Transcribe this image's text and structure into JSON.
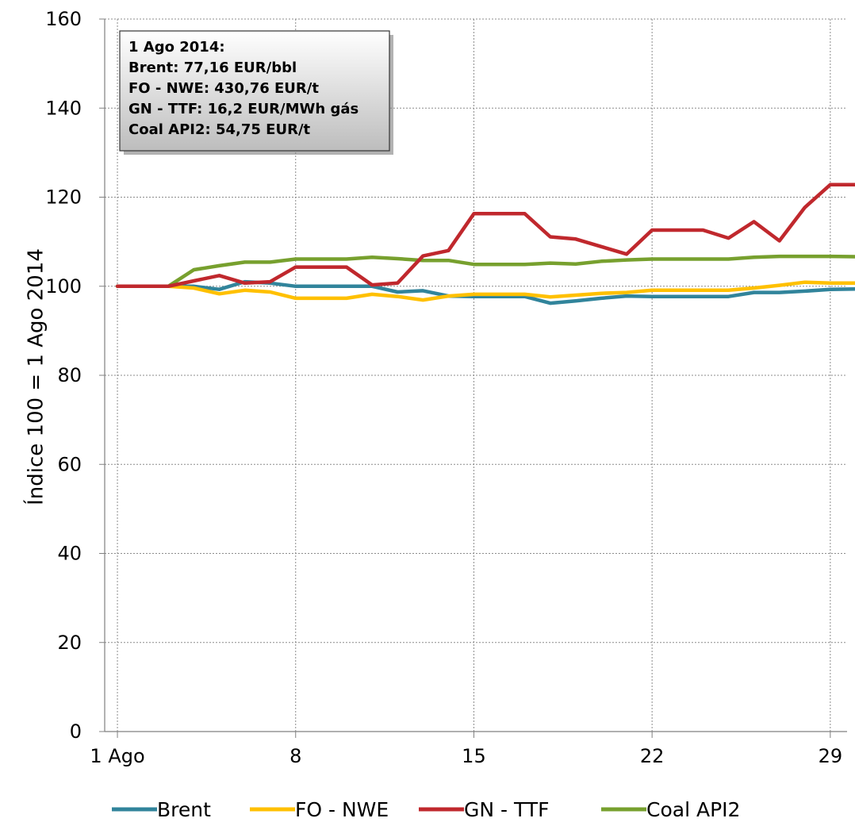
{
  "chart_data": {
    "type": "line",
    "ylabel": "Índice 100 =  1 Ago 2014",
    "ylim": [
      0,
      160
    ],
    "yticks": [
      "0",
      "20",
      "40",
      "60",
      "80",
      "100",
      "120",
      "140",
      "160"
    ],
    "xlim": [
      1,
      30.5
    ],
    "xticks": [
      {
        "day": 1,
        "label": "1 Ago"
      },
      {
        "day": 8,
        "label": "8"
      },
      {
        "day": 15,
        "label": "15"
      },
      {
        "day": 22,
        "label": "22"
      },
      {
        "day": 29,
        "label": "29"
      }
    ],
    "grid": true,
    "legend_position": "bottom",
    "series": [
      {
        "name": "Brent",
        "color": "#31849b",
        "points": [
          [
            1,
            100
          ],
          [
            2,
            100
          ],
          [
            3,
            100
          ],
          [
            4,
            100
          ],
          [
            5,
            99.3
          ],
          [
            6,
            101
          ],
          [
            7,
            100.7
          ],
          [
            8,
            100
          ],
          [
            10,
            100
          ],
          [
            11,
            100
          ],
          [
            12,
            98.7
          ],
          [
            13,
            99
          ],
          [
            14,
            97.8
          ],
          [
            15,
            97.7
          ],
          [
            17,
            97.7
          ],
          [
            18,
            96.2
          ],
          [
            19,
            96.7
          ],
          [
            20,
            97.3
          ],
          [
            21,
            97.8
          ],
          [
            22,
            97.7
          ],
          [
            25,
            97.7
          ],
          [
            26,
            98.6
          ],
          [
            27,
            98.6
          ],
          [
            28,
            98.9
          ],
          [
            29,
            99.3
          ],
          [
            30.5,
            99.4
          ]
        ]
      },
      {
        "name": "FO - NWE",
        "color": "#ffc000",
        "points": [
          [
            1,
            100
          ],
          [
            2,
            100
          ],
          [
            3,
            100
          ],
          [
            4,
            99.6
          ],
          [
            5,
            98.3
          ],
          [
            6,
            99.1
          ],
          [
            7,
            98.7
          ],
          [
            8,
            97.3
          ],
          [
            10,
            97.3
          ],
          [
            11,
            98.2
          ],
          [
            12,
            97.7
          ],
          [
            13,
            96.9
          ],
          [
            14,
            97.8
          ],
          [
            15,
            98.2
          ],
          [
            17,
            98.2
          ],
          [
            18,
            97.6
          ],
          [
            19,
            98
          ],
          [
            20,
            98.4
          ],
          [
            21,
            98.6
          ],
          [
            22,
            99.1
          ],
          [
            25,
            99.1
          ],
          [
            26,
            99.6
          ],
          [
            27,
            100.2
          ],
          [
            28,
            100.9
          ],
          [
            29,
            100.7
          ],
          [
            30.5,
            100.7
          ]
        ]
      },
      {
        "name": "GN - TTF",
        "color": "#c0282d",
        "points": [
          [
            1,
            100
          ],
          [
            2,
            100
          ],
          [
            3,
            100
          ],
          [
            4,
            101.2
          ],
          [
            5,
            102.4
          ],
          [
            6,
            100.7
          ],
          [
            7,
            101
          ],
          [
            8,
            104.3
          ],
          [
            10,
            104.3
          ],
          [
            11,
            100.3
          ],
          [
            12,
            100.7
          ],
          [
            13,
            106.8
          ],
          [
            14,
            108
          ],
          [
            15,
            116.3
          ],
          [
            17,
            116.3
          ],
          [
            18,
            111.1
          ],
          [
            19,
            110.6
          ],
          [
            20,
            108.9
          ],
          [
            21,
            107.2
          ],
          [
            22,
            112.6
          ],
          [
            24,
            112.6
          ],
          [
            25,
            110.8
          ],
          [
            26,
            114.5
          ],
          [
            27,
            110.2
          ],
          [
            28,
            117.7
          ],
          [
            29,
            122.8
          ],
          [
            30.5,
            122.8
          ]
        ]
      },
      {
        "name": "Coal API2",
        "color": "#77a02e",
        "points": [
          [
            1,
            100
          ],
          [
            2,
            100
          ],
          [
            3,
            100
          ],
          [
            4,
            103.7
          ],
          [
            5,
            104.6
          ],
          [
            6,
            105.4
          ],
          [
            7,
            105.4
          ],
          [
            8,
            106.1
          ],
          [
            10,
            106.1
          ],
          [
            11,
            106.5
          ],
          [
            12,
            106.2
          ],
          [
            13,
            105.8
          ],
          [
            14,
            105.8
          ],
          [
            15,
            104.9
          ],
          [
            17,
            104.9
          ],
          [
            18,
            105.2
          ],
          [
            19,
            105
          ],
          [
            20,
            105.6
          ],
          [
            21,
            105.9
          ],
          [
            22,
            106.1
          ],
          [
            25,
            106.1
          ],
          [
            26,
            106.5
          ],
          [
            27,
            106.7
          ],
          [
            28,
            106.7
          ],
          [
            29,
            106.7
          ],
          [
            30.5,
            106.6
          ]
        ]
      }
    ],
    "annotation": {
      "lines": [
        "1 Ago 2014:",
        "Brent: 77,16 EUR/bbl",
        "FO - NWE: 430,76  EUR/t",
        "GN - TTF: 16,2 EUR/MWh gás",
        "Coal API2: 54,75 EUR/t"
      ]
    }
  }
}
